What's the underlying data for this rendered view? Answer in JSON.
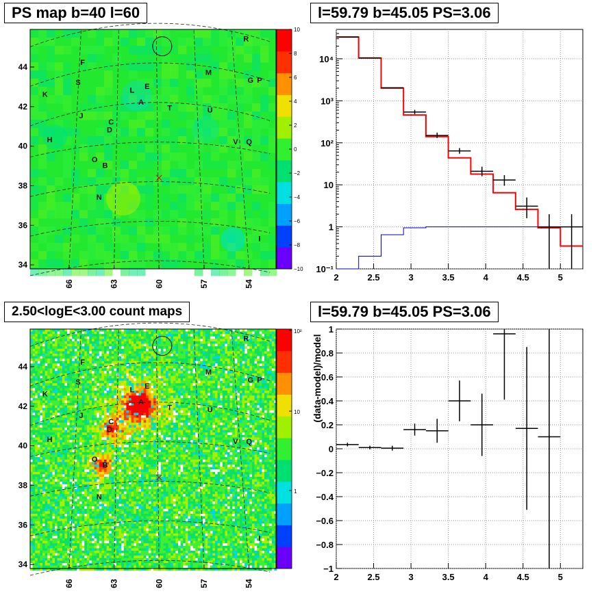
{
  "panels": {
    "ps_map": {
      "title": "PS map b=40 l=60"
    },
    "count_map": {
      "title": "2.50<logE<3.00 count maps"
    },
    "spectrum": {
      "title": "l=59.79 b=45.05 PS=3.06"
    },
    "residual": {
      "title": "l=59.79 b=45.05 PS=3.06"
    }
  },
  "maps": {
    "b_ticks": [
      "34",
      "36",
      "38",
      "40",
      "42",
      "44"
    ],
    "l_ticks": [
      "66",
      "63",
      "60",
      "57",
      "54"
    ],
    "source_labels": [
      {
        "id": "R",
        "l": 54.2,
        "b": 45.3
      },
      {
        "id": "F",
        "l": 65.1,
        "b": 44.1
      },
      {
        "id": "M",
        "l": 56.7,
        "b": 43.6
      },
      {
        "id": "G",
        "l": 53.9,
        "b": 43.2
      },
      {
        "id": "P",
        "l": 53.3,
        "b": 43.2
      },
      {
        "id": "S",
        "l": 65.4,
        "b": 43.1
      },
      {
        "id": "E",
        "l": 60.8,
        "b": 42.9
      },
      {
        "id": "L",
        "l": 61.8,
        "b": 42.7
      },
      {
        "id": "K",
        "l": 67.6,
        "b": 42.5
      },
      {
        "id": "A",
        "l": 61.2,
        "b": 42.1
      },
      {
        "id": "T",
        "l": 59.3,
        "b": 41.8
      },
      {
        "id": "U",
        "l": 56.6,
        "b": 41.7
      },
      {
        "id": "J",
        "l": 65.2,
        "b": 41.4
      },
      {
        "id": "C",
        "l": 63.2,
        "b": 41.1
      },
      {
        "id": "D",
        "l": 63.3,
        "b": 40.7
      },
      {
        "id": "H",
        "l": 67.3,
        "b": 40.2
      },
      {
        "id": "V",
        "l": 54.9,
        "b": 40.1
      },
      {
        "id": "Q",
        "l": 54.0,
        "b": 40.1
      },
      {
        "id": "O",
        "l": 64.3,
        "b": 39.2
      },
      {
        "id": "B",
        "l": 63.6,
        "b": 38.9
      },
      {
        "id": "N",
        "l": 64.0,
        "b": 37.3
      },
      {
        "id": "I",
        "l": 53.3,
        "b": 35.2
      }
    ],
    "target": {
      "l": 59.79,
      "b": 45.05
    },
    "cross": {
      "l": 60.0,
      "b": 38.4
    },
    "ps_colorbar_ticks": [
      "10",
      "8",
      "6",
      "4",
      "2",
      "0",
      "−2",
      "−4",
      "−6",
      "−8",
      "−10"
    ],
    "count_colorbar_ticks": [
      "10²",
      "10",
      "1"
    ],
    "colors": {
      "green_bg": "#22e82f",
      "palette": [
        "#6a00ff",
        "#0040ff",
        "#00a0ff",
        "#00e0e0",
        "#00e070",
        "#30f030",
        "#a0f000",
        "#f0e000",
        "#ff9000",
        "#ff3000",
        "#ff0000"
      ]
    }
  },
  "chart_data": [
    {
      "type": "line",
      "panel": "spectrum",
      "xlim": [
        2,
        5.3
      ],
      "ylim": [
        0.1,
        50000
      ],
      "ylog": true,
      "x_ticks": [
        "2",
        "2.5",
        "3",
        "3.5",
        "4",
        "4.5",
        "5"
      ],
      "y_ticks": [
        "10⁻¹",
        "1",
        "10",
        "10²",
        "10³",
        "10⁴"
      ],
      "grid": true,
      "data_points": [
        {
          "x": 2.15,
          "y": 33000,
          "xerr": 0.15
        },
        {
          "x": 2.45,
          "y": 10500,
          "xerr": 0.15
        },
        {
          "x": 2.75,
          "y": 2050,
          "xerr": 0.15
        },
        {
          "x": 3.05,
          "y": 540,
          "xerr": 0.15,
          "yerr_lo": 480,
          "yerr_hi": 610
        },
        {
          "x": 3.35,
          "y": 150,
          "xerr": 0.15,
          "yerr_lo": 130,
          "yerr_hi": 175
        },
        {
          "x": 3.65,
          "y": 64,
          "xerr": 0.15,
          "yerr_lo": 55,
          "yerr_hi": 75
        },
        {
          "x": 3.95,
          "y": 21,
          "xerr": 0.15,
          "yerr_lo": 16,
          "yerr_hi": 27
        },
        {
          "x": 4.25,
          "y": 13,
          "xerr": 0.15,
          "yerr_lo": 9.5,
          "yerr_hi": 17
        },
        {
          "x": 4.55,
          "y": 3.1,
          "xerr": 0.15,
          "yerr_lo": 1.6,
          "yerr_hi": 5
        },
        {
          "x": 4.85,
          "y": 1.0,
          "xerr": 0.15,
          "yerr_lo": 0.1,
          "yerr_hi": 2.0
        },
        {
          "x": 5.15,
          "y": 1.0,
          "xerr": 0.15,
          "yerr_lo": 0.1,
          "yerr_hi": 2.0
        }
      ],
      "series": [
        {
          "color": "#ff0000",
          "style": "step",
          "edges": [
            2.0,
            2.3,
            2.6,
            2.9,
            3.2,
            3.5,
            3.8,
            4.1,
            4.4,
            4.7,
            5.0,
            5.3
          ],
          "values": [
            33000,
            10400,
            2000,
            460,
            140,
            44,
            18,
            6.5,
            2.6,
            0.95,
            0.35
          ]
        },
        {
          "color": "#0000cc",
          "style": "step",
          "edges": [
            2.0,
            2.3,
            2.6,
            2.9,
            3.2,
            3.5,
            3.8,
            4.1,
            4.4,
            4.7,
            5.0,
            5.3
          ],
          "values": [
            0.1,
            0.2,
            0.65,
            0.95,
            1.0,
            1.0,
            1.0,
            1.0,
            1.0,
            1.0,
            1.0
          ]
        }
      ]
    },
    {
      "type": "scatter",
      "panel": "residual",
      "ylabel": "(data-model)/model",
      "xlim": [
        2,
        5.3
      ],
      "ylim": [
        -1,
        1
      ],
      "x_ticks": [
        "2",
        "2.5",
        "3",
        "3.5",
        "4",
        "4.5",
        "5"
      ],
      "y_ticks": [
        "1",
        "0.8",
        "0.6",
        "0.4",
        "0.2",
        "0",
        "−0.2",
        "−0.4",
        "−0.6",
        "−0.8",
        "−1"
      ],
      "grid": true,
      "data_points": [
        {
          "x": 2.15,
          "y": 0.035,
          "xerr": 0.15,
          "yerr_lo": 0.015,
          "yerr_hi": 0.015
        },
        {
          "x": 2.45,
          "y": 0.01,
          "xerr": 0.15,
          "yerr_lo": 0.015,
          "yerr_hi": 0.015
        },
        {
          "x": 2.75,
          "y": 0.005,
          "xerr": 0.15,
          "yerr_lo": 0.02,
          "yerr_hi": 0.02
        },
        {
          "x": 3.05,
          "y": 0.16,
          "xerr": 0.15,
          "yerr_lo": 0.05,
          "yerr_hi": 0.05
        },
        {
          "x": 3.35,
          "y": 0.15,
          "xerr": 0.15,
          "yerr_lo": 0.1,
          "yerr_hi": 0.1
        },
        {
          "x": 3.65,
          "y": 0.4,
          "xerr": 0.15,
          "yerr_lo": 0.17,
          "yerr_hi": 0.17
        },
        {
          "x": 3.95,
          "y": 0.2,
          "xerr": 0.15,
          "yerr_lo": 0.26,
          "yerr_hi": 0.26
        },
        {
          "x": 4.25,
          "y": 0.96,
          "xerr": 0.15,
          "yerr_lo": 0.55,
          "yerr_hi": 0.04
        },
        {
          "x": 4.55,
          "y": 0.17,
          "xerr": 0.15,
          "yerr_lo": 0.68,
          "yerr_hi": 0.68
        },
        {
          "x": 4.85,
          "y": 0.1,
          "xerr": 0.15,
          "yerr_lo": 1.1,
          "yerr_hi": 0.9
        }
      ]
    }
  ]
}
